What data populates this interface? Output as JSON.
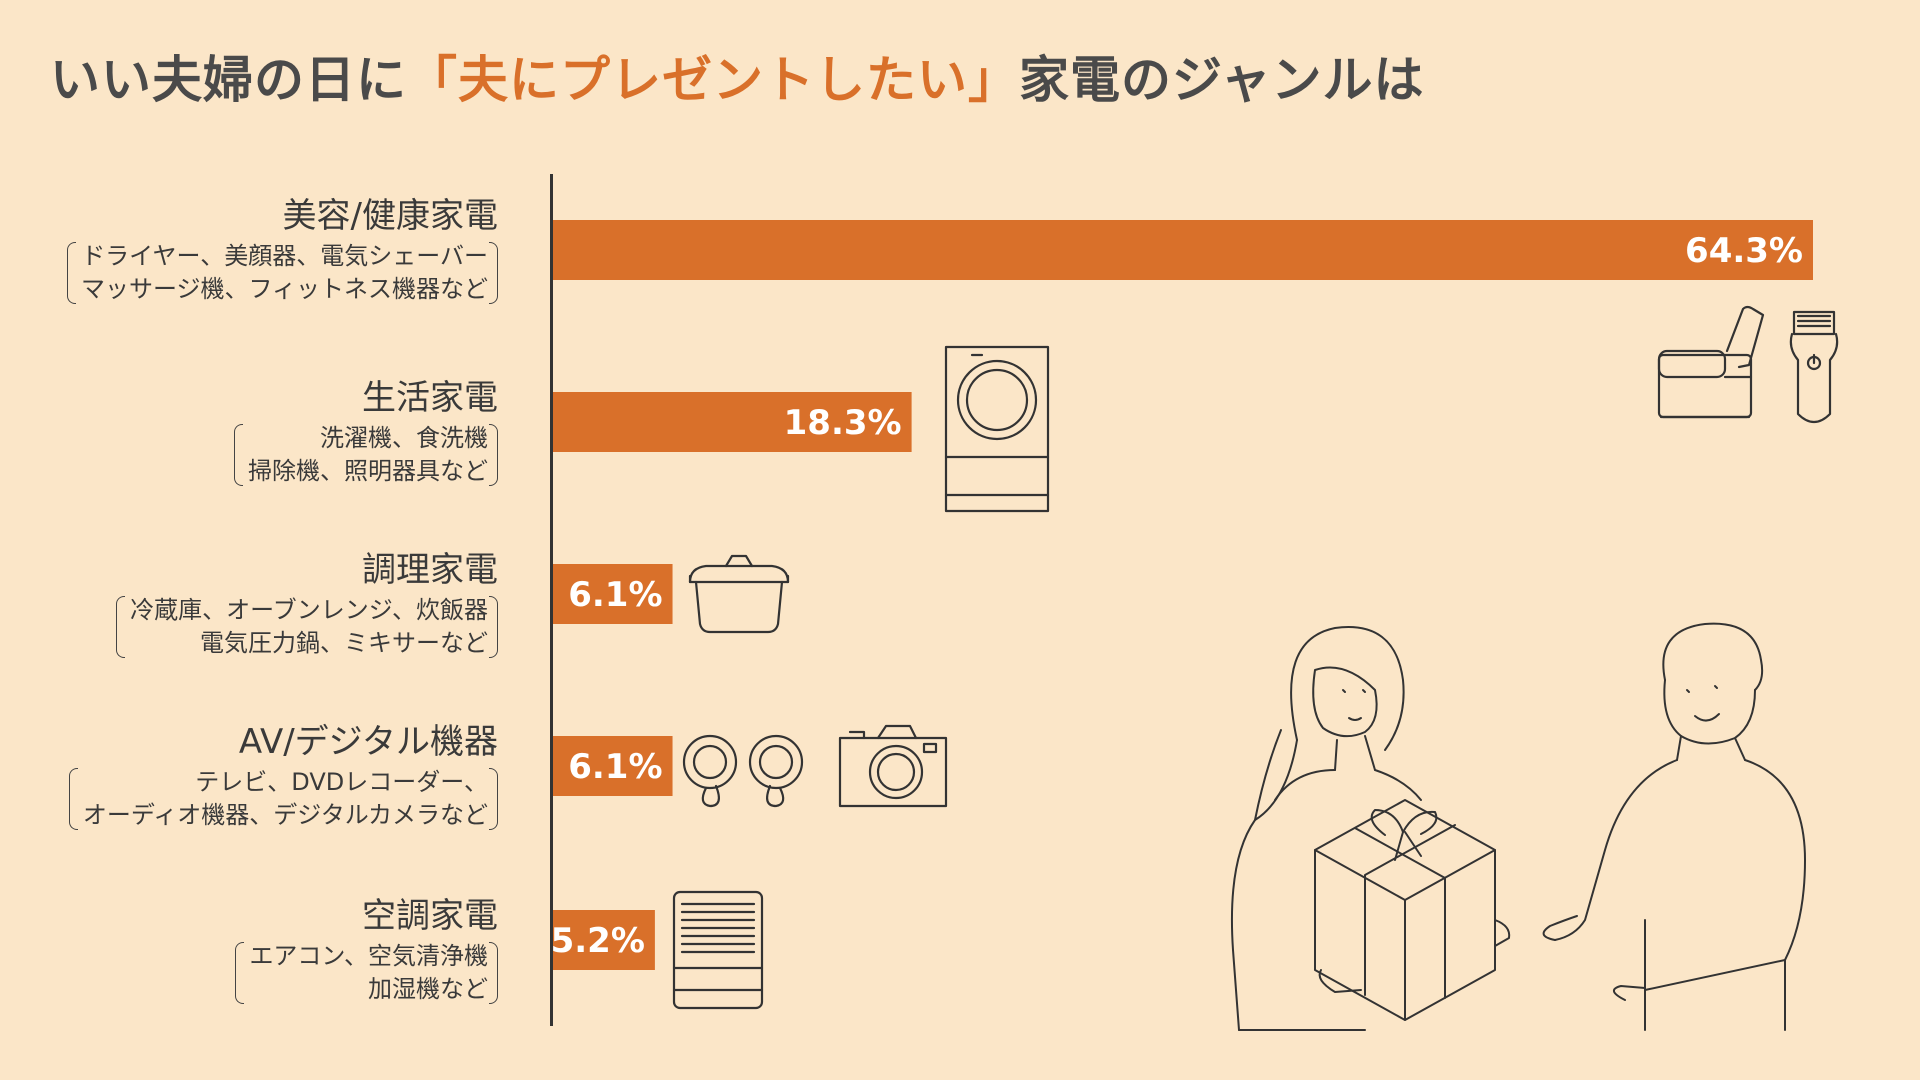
{
  "title": {
    "prefix": "いい夫婦の日に",
    "highlight": "「夫にプレゼントしたい」",
    "suffix": "家電のジャンルは"
  },
  "categories": [
    {
      "label": "美容/健康家電",
      "desc": [
        "ドライヤー、美顔器、電気シェーバー",
        "マッサージ機、フィットネス機器など"
      ]
    },
    {
      "label": "生活家電",
      "desc": [
        "洗濯機、食洗機",
        "掃除機、照明器具など"
      ]
    },
    {
      "label": "調理家電",
      "desc": [
        "冷蔵庫、オーブンレンジ、炊飯器",
        "電気圧力鍋、ミキサーなど"
      ]
    },
    {
      "label": "AV/デジタル機器",
      "desc": [
        "テレビ、DVDレコーダー、",
        "オーディオ機器、デジタルカメラなど"
      ]
    },
    {
      "label": "空調家電",
      "desc": [
        "エアコン、空気清浄機",
        "加湿機など"
      ]
    }
  ],
  "chart_data": {
    "type": "bar",
    "orientation": "horizontal",
    "categories": [
      "美容/健康家電",
      "生活家電",
      "調理家電",
      "AV/デジタル機器",
      "空調家電"
    ],
    "values": [
      64.3,
      18.3,
      6.1,
      6.1,
      5.2
    ],
    "value_labels": [
      "64.3%",
      "18.3%",
      "6.1%",
      "6.1%",
      "5.2%"
    ],
    "unit": "%",
    "xlim": [
      0,
      64.3
    ],
    "grid": false,
    "bar_color": "#d9702a"
  },
  "colors": {
    "background": "#fbe6c8",
    "accent": "#d9702a",
    "text": "#3d3d3d"
  },
  "icons": [
    "massage-chair-icon",
    "shaver-icon",
    "washing-machine-icon",
    "pot-icon",
    "earbuds-icon",
    "camera-icon",
    "air-purifier-icon",
    "couple-gift-illustration"
  ]
}
